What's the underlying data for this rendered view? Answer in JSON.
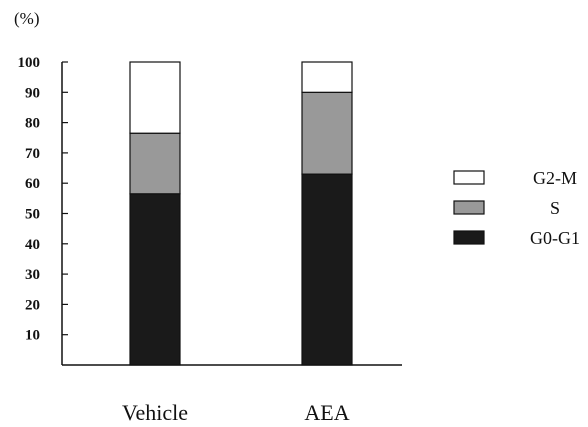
{
  "chart_data": {
    "type": "bar",
    "stacked": true,
    "title": "",
    "xlabel": "",
    "ylabel": "(%)",
    "ylim": [
      0,
      100
    ],
    "yticks": [
      10,
      20,
      30,
      40,
      50,
      60,
      70,
      80,
      90,
      100
    ],
    "grid": false,
    "legend_position": "right",
    "categories": [
      "Vehicle",
      "AEA"
    ],
    "series": [
      {
        "name": "G0-G1",
        "values": [
          56.5,
          63
        ],
        "color": "#1a1a1a"
      },
      {
        "name": "S",
        "values": [
          20,
          27
        ],
        "color": "#999999"
      },
      {
        "name": "G2-M",
        "values": [
          23.5,
          10
        ],
        "color": "#ffffff"
      }
    ],
    "legend_order": [
      "G2-M",
      "S",
      "G0-G1"
    ]
  }
}
